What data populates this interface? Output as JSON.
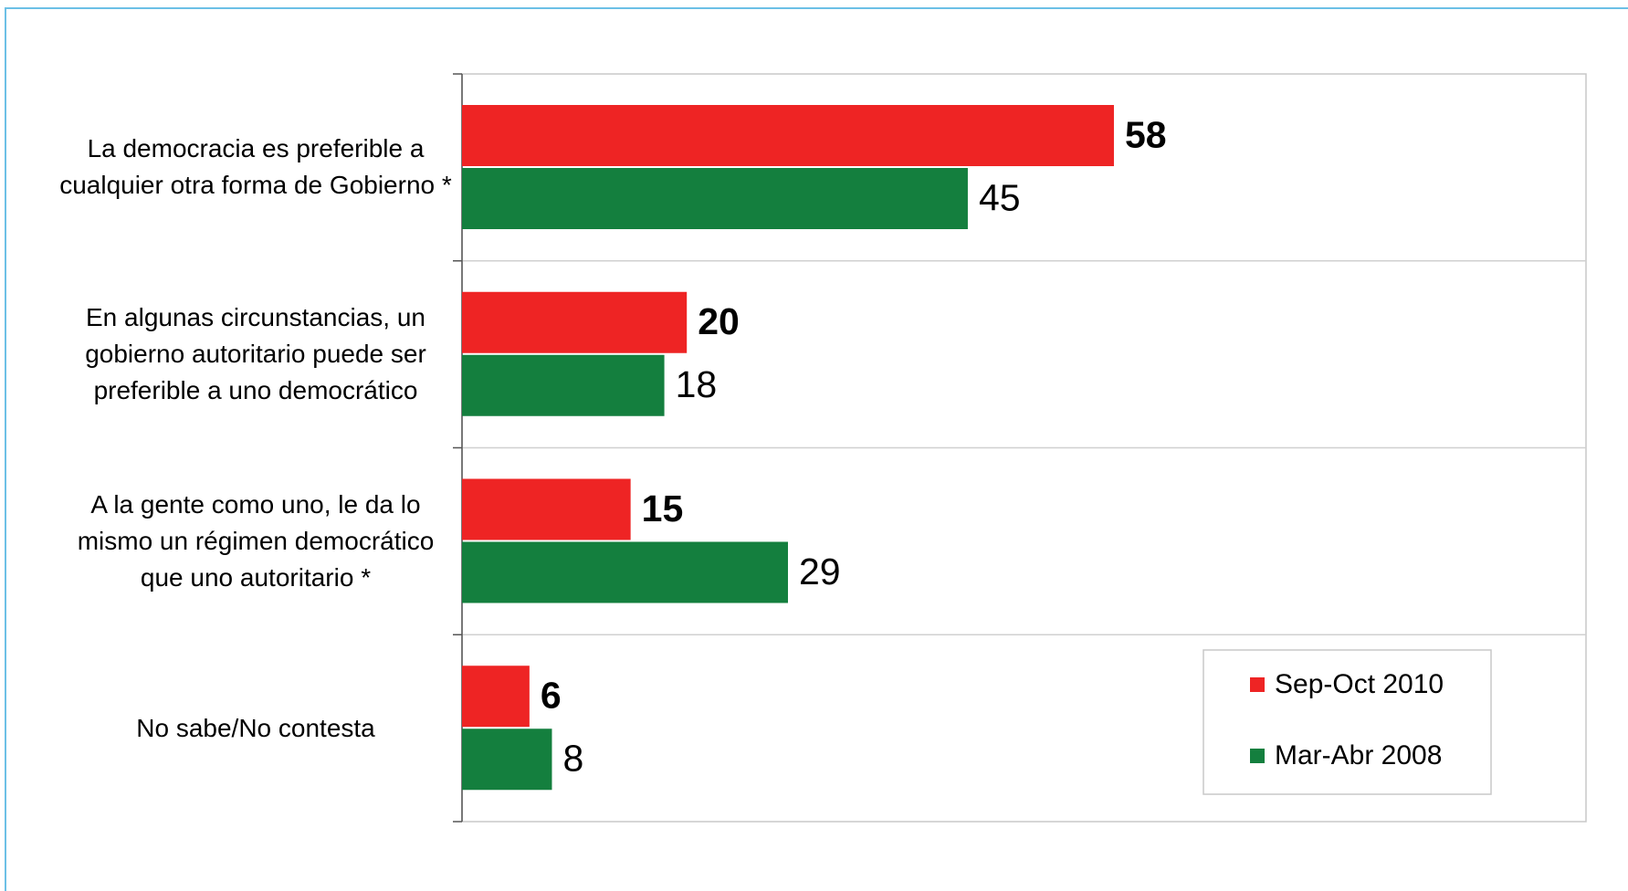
{
  "chart_data": {
    "type": "bar",
    "orientation": "horizontal",
    "categories": [
      "La democracia es preferible a cualquier otra forma de Gobierno *",
      "En algunas circunstancias, un gobierno autoritario puede ser preferible a uno democrático",
      "A la gente como uno, le da lo mismo un régimen democrático que uno autoritario *",
      "No sabe/No contesta"
    ],
    "series": [
      {
        "name": "Sep-Oct 2010",
        "color": "#ee2424",
        "values": [
          58,
          20,
          15,
          6
        ]
      },
      {
        "name": "Mar-Abr 2008",
        "color": "#147f3e",
        "values": [
          45,
          18,
          29,
          8
        ]
      }
    ],
    "xlim": [
      0,
      100
    ],
    "legend": "bottom-right"
  }
}
